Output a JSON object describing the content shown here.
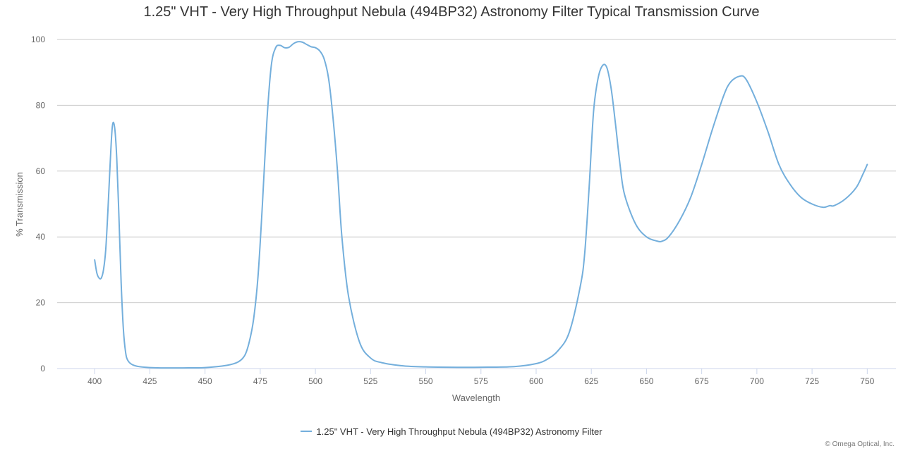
{
  "chart_data": {
    "type": "line",
    "title": "1.25\" VHT - Very High Throughput Nebula (494BP32) Astronomy Filter Typical Transmission Curve",
    "xlabel": "Wavelength",
    "ylabel": "% Transmission",
    "xlim": [
      383,
      763
    ],
    "ylim": [
      0,
      100
    ],
    "xticks": [
      400,
      425,
      450,
      475,
      500,
      525,
      550,
      575,
      600,
      625,
      650,
      675,
      700,
      725,
      750
    ],
    "yticks": [
      0,
      20,
      40,
      60,
      80,
      100
    ],
    "grid": "horizontal",
    "legend_position": "bottom-center",
    "series": [
      {
        "name": "1.25\" VHT - Very High Throughput Nebula (494BP32) Astronomy Filter",
        "color": "#74afdc",
        "x": [
          400,
          401,
          402,
          403,
          404,
          405,
          406,
          407,
          408,
          409,
          410,
          411,
          412,
          413,
          414,
          415,
          417,
          420,
          425,
          430,
          440,
          450,
          460,
          465,
          468,
          470,
          472,
          474,
          476,
          478,
          480,
          482,
          484,
          486,
          488,
          490,
          492,
          494,
          496,
          498,
          500,
          502,
          504,
          506,
          508,
          510,
          512,
          515,
          520,
          525,
          530,
          540,
          550,
          560,
          575,
          590,
          600,
          605,
          610,
          615,
          620,
          622,
          624,
          626,
          628,
          630,
          632,
          634,
          636,
          638,
          640,
          645,
          650,
          655,
          657,
          660,
          665,
          670,
          675,
          680,
          685,
          688,
          692,
          695,
          700,
          705,
          710,
          715,
          720,
          725,
          730,
          733,
          735,
          740,
          745,
          748,
          750
        ],
        "y": [
          33,
          29,
          27.5,
          27.5,
          30,
          36,
          48,
          62,
          73.5,
          73.5,
          64,
          46,
          26,
          12,
          5,
          2.5,
          1.2,
          0.6,
          0.3,
          0.2,
          0.2,
          0.3,
          1,
          2,
          4,
          8,
          15,
          28,
          50,
          75,
          92,
          97.5,
          98.2,
          97.5,
          97.6,
          98.7,
          99.3,
          99.2,
          98.5,
          97.8,
          97.5,
          96.5,
          94,
          88,
          76,
          60,
          40,
          22,
          8,
          3.2,
          1.8,
          0.8,
          0.5,
          0.4,
          0.4,
          0.6,
          1.5,
          2.8,
          5.5,
          11,
          25,
          35,
          55,
          78,
          88,
          92,
          91.5,
          85,
          74,
          62,
          53,
          44,
          40,
          38.7,
          38.7,
          40,
          45,
          52,
          62,
          73,
          83,
          87,
          88.8,
          88,
          81,
          72,
          62,
          56,
          52,
          50,
          49,
          49.5,
          49.5,
          51.5,
          55,
          59,
          62
        ]
      }
    ]
  },
  "credit": "© Omega Optical, Inc."
}
